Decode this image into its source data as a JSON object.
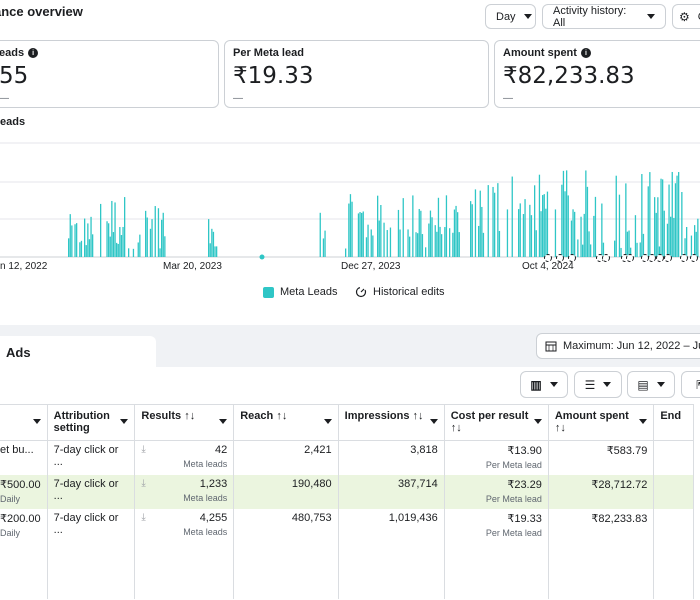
{
  "header": {
    "title": "ance overview",
    "day_button": "Day",
    "activity_button": "Activity history: All",
    "extra_button": "C"
  },
  "cards": [
    {
      "label": "eads",
      "value": "55",
      "sub": "—"
    },
    {
      "label": "Per Meta lead",
      "value": "₹19.33",
      "sub": "—"
    },
    {
      "label": "Amount spent",
      "value": "₹82,233.83",
      "sub": "—"
    }
  ],
  "chart_data": {
    "type": "bar",
    "title": "eads",
    "x_ticks": [
      "n 12, 2022",
      "Mar 20, 2023",
      "Dec 27, 2023",
      "Oct 4, 2024"
    ],
    "legend": [
      "Meta Leads",
      "Historical edits"
    ],
    "bar_color": "#2fc6c6",
    "grid": true
  },
  "tabs": {
    "ads_label": "Ads"
  },
  "date_range": "Maximum: Jun 12, 2022 – Ju",
  "table": {
    "headers": [
      {
        "label": "",
        "sort": ""
      },
      {
        "label": "Attribution setting",
        "sort": ""
      },
      {
        "label": "Results",
        "sort": "↑↓"
      },
      {
        "label": "Reach",
        "sort": "↑↓"
      },
      {
        "label": "Impressions",
        "sort": "↑↓"
      },
      {
        "label": "Cost per result",
        "sort": "↑↓"
      },
      {
        "label": "Amount spent",
        "sort": "↑↓"
      },
      {
        "label": "End",
        "sort": ""
      }
    ],
    "rows": [
      {
        "budget": "et bu...",
        "budget_sub": "",
        "attribution": "7-day click or ...",
        "results": "42",
        "results_sub": "Meta leads",
        "reach": "2,421",
        "impressions": "3,818",
        "cpr": "₹13.90",
        "cpr_sub": "Per Meta lead",
        "spent": "₹583.79"
      },
      {
        "budget": "₹500.00",
        "budget_sub": "Daily",
        "attribution": "7-day click or ...",
        "results": "1,233",
        "results_sub": "Meta leads",
        "reach": "190,480",
        "impressions": "387,714",
        "cpr": "₹23.29",
        "cpr_sub": "Per Meta lead",
        "spent": "₹28,712.72"
      },
      {
        "budget": "₹200.00",
        "budget_sub": "Daily",
        "attribution": "7-day click or ...",
        "results": "4,255",
        "results_sub": "Meta leads",
        "reach": "480,753",
        "impressions": "1,019,436",
        "cpr": "₹19.33",
        "cpr_sub": "Per Meta lead",
        "spent": "₹82,233.83"
      }
    ]
  }
}
